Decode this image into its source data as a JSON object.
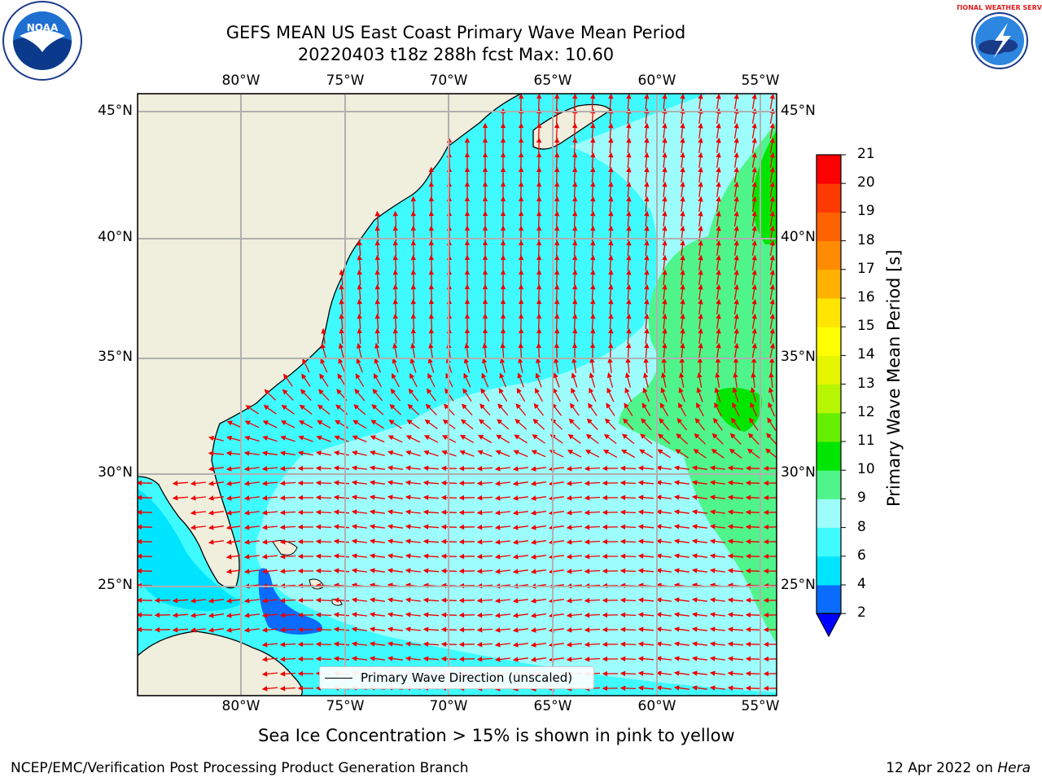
{
  "title_line1": "GEFS MEAN US East Coast Primary Wave Mean Period",
  "title_line2": "20220403 t18z 288h fcst   Max: 10.60",
  "longitude_labels": [
    "80°W",
    "75°W",
    "70°W",
    "65°W",
    "60°W",
    "55°W"
  ],
  "latitude_labels": [
    "45°N",
    "40°N",
    "35°N",
    "30°N",
    "25°N"
  ],
  "legend_label": "Primary Wave Direction (unscaled)",
  "colorbar": {
    "title": "Primary Wave Mean Period [s]",
    "ticks": [
      "2",
      "4",
      "6",
      "8",
      "9",
      "10",
      "11",
      "12",
      "13",
      "14",
      "15",
      "16",
      "17",
      "18",
      "19",
      "20",
      "21"
    ],
    "colors": [
      "#0a6bff",
      "#00e5ff",
      "#3ffbff",
      "#9dfdfd",
      "#4ff58a",
      "#00e600",
      "#66ee00",
      "#b7f500",
      "#e6f500",
      "#ffff00",
      "#ffe500",
      "#ffb300",
      "#ff8c00",
      "#ff6200",
      "#ff3a00",
      "#ff0000"
    ],
    "under_color": "#0000ff"
  },
  "sea_ice_note": "Sea Ice Concentration > 15% is shown in pink to yellow",
  "footer_left": "NCEP/EMC/Verification Post Processing Product Generation Branch",
  "footer_right_prefix": "12 Apr 2022 on ",
  "footer_right_host": "Hera",
  "logo_left_text": "NOAA",
  "logo_right_text": "NATIONAL WEATHER SERVICE",
  "colors": {
    "land": "#f0eedc",
    "ocean_base": "#3ffbff",
    "ocean_light": "#9dfdfd",
    "ocean_green": "#4ff58a",
    "arrow": "#ee0000",
    "grid": "#b0b0b0"
  }
}
